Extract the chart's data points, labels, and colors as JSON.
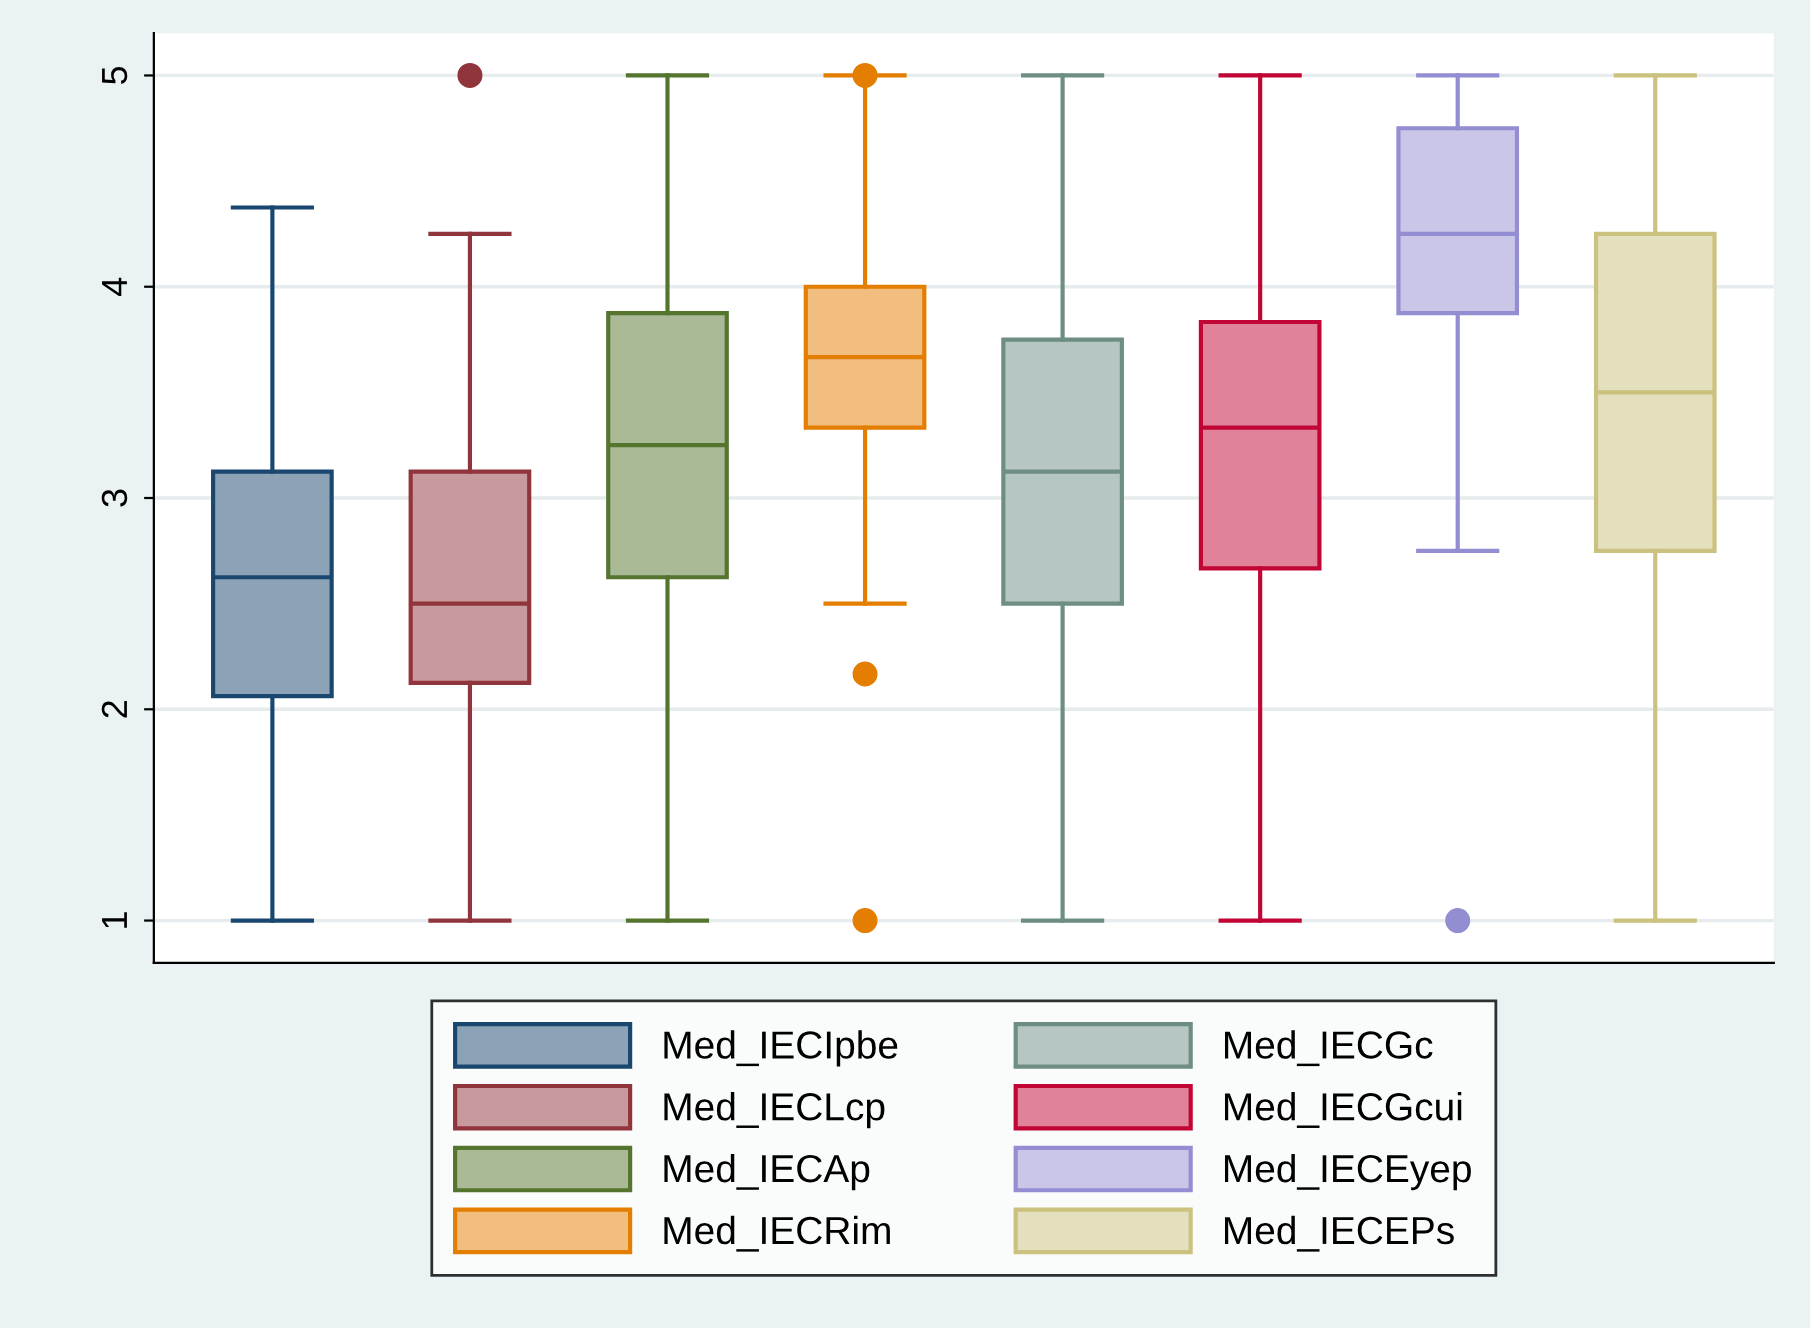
{
  "chart_data": {
    "type": "box",
    "categories": [
      null,
      null,
      null,
      null,
      null,
      null,
      null,
      null
    ],
    "series": [
      {
        "name": "Med_IECIpbe",
        "color": "#1a476f",
        "boxes": [
          {
            "low": 1,
            "q1": 2.0625,
            "median": 2.625,
            "q3": 3.125,
            "high": 4.375
          },
          null,
          null,
          null,
          null,
          null,
          null,
          null
        ]
      },
      {
        "name": "Med_IECLcp",
        "color": "#90353b",
        "boxes": [
          null,
          {
            "low": 1,
            "q1": 2.125,
            "median": 2.5,
            "q3": 3.125,
            "high": 4.25,
            "outliers": [
              5
            ]
          },
          null,
          null,
          null,
          null,
          null,
          null
        ]
      },
      {
        "name": "Med_IECAp",
        "color": "#55752f",
        "boxes": [
          null,
          null,
          {
            "low": 1,
            "q1": 2.625,
            "median": 3.25,
            "q3": 3.875,
            "high": 5
          },
          null,
          null,
          null,
          null,
          null
        ]
      },
      {
        "name": "Med_IECRim",
        "color": "#e37e00",
        "boxes": [
          null,
          null,
          null,
          {
            "low": 2.5,
            "q1": 3.333,
            "median": 3.667,
            "q3": 4,
            "high": 5,
            "outliers": [
              5,
              2.167,
              1
            ]
          },
          null,
          null,
          null,
          null
        ]
      },
      {
        "name": "Med_IECGc",
        "color": "#6e8e84",
        "boxes": [
          null,
          null,
          null,
          null,
          {
            "low": 1,
            "q1": 2.5,
            "median": 3.125,
            "q3": 3.75,
            "high": 5
          },
          null,
          null,
          null
        ]
      },
      {
        "name": "Med_IECGcui",
        "color": "#c10534",
        "boxes": [
          null,
          null,
          null,
          null,
          null,
          {
            "low": 1,
            "q1": 2.667,
            "median": 3.333,
            "q3": 3.833,
            "high": 5
          },
          null,
          null
        ]
      },
      {
        "name": "Med_IECEyep",
        "color": "#938dd2",
        "boxes": [
          null,
          null,
          null,
          null,
          null,
          null,
          {
            "low": 2.75,
            "q1": 3.875,
            "median": 4.25,
            "q3": 4.75,
            "high": 5,
            "outliers": [
              1
            ]
          },
          null
        ]
      },
      {
        "name": "Med_IECEPs",
        "color": "#cac27e",
        "boxes": [
          null,
          null,
          null,
          null,
          null,
          null,
          null,
          {
            "low": 1,
            "q1": 2.75,
            "median": 3.5,
            "q3": 4.25,
            "high": 5
          }
        ]
      }
    ],
    "ylim": [
      0.8,
      5.2
    ],
    "yticks": [
      1,
      2,
      3,
      4,
      5
    ],
    "grid": "y",
    "legend": "bottom",
    "marker": "circle"
  }
}
